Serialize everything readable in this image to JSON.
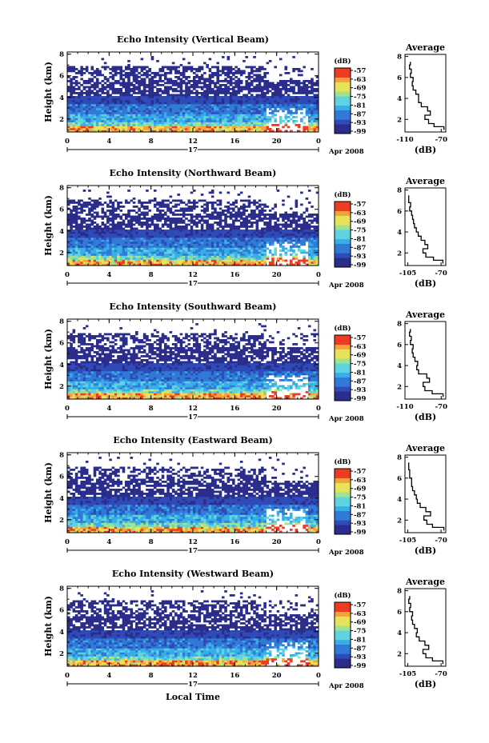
{
  "figure": {
    "xlabel": "Local Time",
    "date_label": "17",
    "month_label": "Apr 2008",
    "colorbar_unit": "(dB)",
    "colorbar_ticks": [
      "-57",
      "-63",
      "-69",
      "-75",
      "-81",
      "-87",
      "-93",
      "-99"
    ],
    "colormap": [
      "#2a2d8c",
      "#2f4bb8",
      "#2e7ad6",
      "#38aee8",
      "#5fd3e0",
      "#9fe38f",
      "#e6e35a",
      "#f6a23a",
      "#ee3b24"
    ],
    "y_ticks": [
      "2",
      "4",
      "6",
      "8"
    ],
    "x_ticks": [
      "0",
      "4",
      "8",
      "12",
      "16",
      "20",
      "0"
    ],
    "profile_title": "Average",
    "profile_unit": "(dB)"
  },
  "chart_data": [
    {
      "type": "heatmap",
      "title": "Echo Intensity (Vertical Beam)",
      "ylabel": "Height (km)",
      "xlabel": "",
      "x_unit": "Local Time (h)",
      "xlim": [
        0,
        24
      ],
      "ylim": [
        0.8,
        8.2
      ],
      "clim": [
        -99,
        -57
      ],
      "colorbar_label": "(dB)",
      "profile": {
        "title": "Average",
        "xlabel": "(dB)",
        "x_tick_labels": [
          "-110",
          "-70"
        ],
        "xlim": [
          -110,
          -65
        ],
        "ylim": [
          0.8,
          8.2
        ],
        "height": [
          1.0,
          1.3,
          1.6,
          2.0,
          2.4,
          2.8,
          3.2,
          3.6,
          4.0,
          4.4,
          4.8,
          5.2,
          5.6,
          6.0,
          6.4,
          6.8,
          7.2
        ],
        "value": [
          -67,
          -78,
          -84,
          -88,
          -82,
          -85,
          -92,
          -95,
          -95,
          -98,
          -101,
          -102,
          -101,
          -104,
          -103,
          -105,
          -104
        ]
      }
    },
    {
      "type": "heatmap",
      "title": "Echo Intensity (Northward Beam)",
      "ylabel": "Height (km)",
      "xlabel": "",
      "x_unit": "Local Time (h)",
      "xlim": [
        0,
        24
      ],
      "ylim": [
        0.8,
        8.2
      ],
      "clim": [
        -99,
        -57
      ],
      "colorbar_label": "(dB)",
      "profile": {
        "title": "Average",
        "xlabel": "(dB)",
        "x_tick_labels": [
          "-105",
          "-70"
        ],
        "xlim": [
          -108,
          -65
        ],
        "ylim": [
          0.8,
          8.2
        ],
        "height": [
          1.0,
          1.3,
          1.6,
          2.0,
          2.4,
          2.8,
          3.2,
          3.6,
          4.0,
          4.4,
          4.8,
          5.2,
          5.6,
          6.0,
          6.4,
          6.8,
          7.2
        ],
        "value": [
          -68,
          -78,
          -86,
          -89,
          -84,
          -87,
          -91,
          -94,
          -96,
          -98,
          -99,
          -100,
          -101,
          -103,
          -102,
          -104,
          -104
        ]
      }
    },
    {
      "type": "heatmap",
      "title": "Echo Intensity (Southward Beam)",
      "ylabel": "Height (km)",
      "xlabel": "",
      "x_unit": "Local Time (h)",
      "xlim": [
        0,
        24
      ],
      "ylim": [
        0.8,
        8.2
      ],
      "clim": [
        -99,
        -57
      ],
      "colorbar_label": "(dB)",
      "profile": {
        "title": "Average",
        "xlabel": "(dB)",
        "x_tick_labels": [
          "-110",
          "-70"
        ],
        "xlim": [
          -110,
          -65
        ],
        "ylim": [
          0.8,
          8.2
        ],
        "height": [
          1.0,
          1.3,
          1.6,
          2.0,
          2.4,
          2.8,
          3.2,
          3.6,
          4.0,
          4.4,
          4.8,
          5.2,
          5.6,
          6.0,
          6.4,
          6.8,
          7.2
        ],
        "value": [
          -68,
          -80,
          -88,
          -90,
          -83,
          -86,
          -95,
          -97,
          -96,
          -99,
          -101,
          -102,
          -101,
          -104,
          -103,
          -105,
          -104
        ]
      }
    },
    {
      "type": "heatmap",
      "title": "Echo Intensity (Eastward Beam)",
      "ylabel": "Height (km)",
      "xlabel": "",
      "x_unit": "Local Time (h)",
      "xlim": [
        0,
        24
      ],
      "ylim": [
        0.8,
        8.2
      ],
      "clim": [
        -99,
        -57
      ],
      "colorbar_label": "(dB)",
      "profile": {
        "title": "Average",
        "xlabel": "(dB)",
        "x_tick_labels": [
          "-105",
          "-70"
        ],
        "xlim": [
          -108,
          -65
        ],
        "ylim": [
          0.8,
          8.2
        ],
        "height": [
          1.0,
          1.3,
          1.6,
          2.0,
          2.4,
          2.8,
          3.2,
          3.6,
          4.0,
          4.4,
          4.8,
          5.2,
          5.6,
          6.0,
          6.4,
          6.8,
          7.2
        ],
        "value": [
          -67,
          -79,
          -85,
          -88,
          -81,
          -86,
          -92,
          -95,
          -96,
          -98,
          -100,
          -101,
          -101,
          -103,
          -103,
          -104,
          -104
        ]
      }
    },
    {
      "type": "heatmap",
      "title": "Echo Intensity (Westward Beam)",
      "ylabel": "Height (km)",
      "xlabel": "Local Time",
      "x_unit": "Local Time (h)",
      "xlim": [
        0,
        24
      ],
      "ylim": [
        0.8,
        8.2
      ],
      "clim": [
        -99,
        -57
      ],
      "colorbar_label": "(dB)",
      "profile": {
        "title": "Average",
        "xlabel": "(dB)",
        "x_tick_labels": [
          "-105",
          "-70"
        ],
        "xlim": [
          -108,
          -65
        ],
        "ylim": [
          0.8,
          8.2
        ],
        "height": [
          1.0,
          1.3,
          1.6,
          2.0,
          2.4,
          2.8,
          3.2,
          3.6,
          4.0,
          4.4,
          4.8,
          5.2,
          5.6,
          6.0,
          6.4,
          6.8,
          7.2
        ],
        "value": [
          -68,
          -79,
          -86,
          -89,
          -83,
          -87,
          -93,
          -96,
          -95,
          -98,
          -100,
          -101,
          -100,
          -103,
          -102,
          -104,
          -103
        ]
      }
    }
  ]
}
